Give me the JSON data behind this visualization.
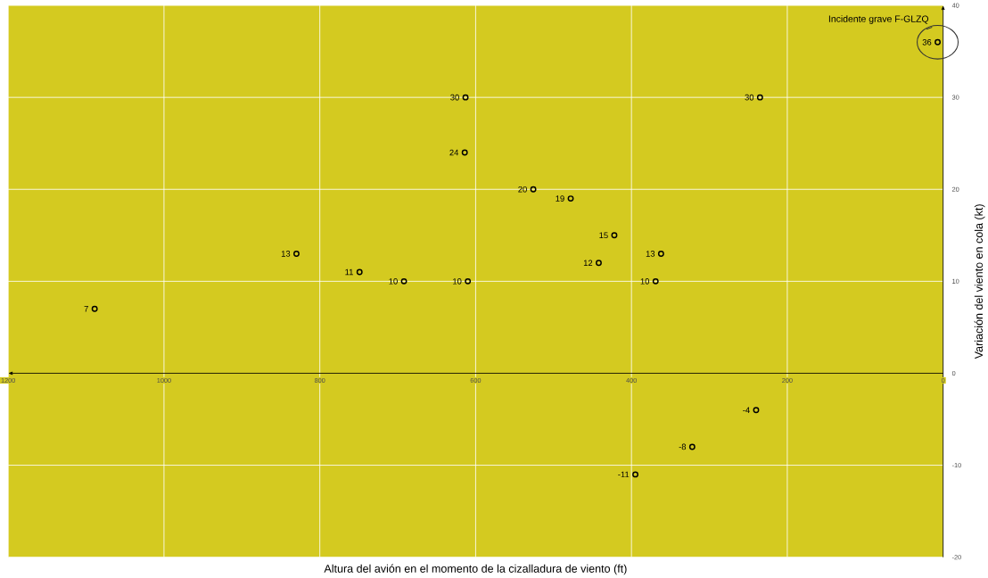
{
  "chart_data": {
    "type": "scatter",
    "xlabel": "Altura del avión en el momento de la cizalladura de viento (ft)",
    "ylabel": "Variación del viento en cola (kt)",
    "x": [
      7,
      613,
      235,
      614,
      526,
      478,
      422,
      830,
      362,
      442,
      749,
      692,
      610,
      369,
      1089,
      240,
      322,
      395
    ],
    "values": [
      36,
      30,
      30,
      24,
      20,
      19,
      15,
      13,
      13,
      12,
      11,
      10,
      10,
      10,
      7,
      -4,
      -8,
      -11
    ],
    "color": "#000000",
    "marker": "circle",
    "data_labels": true,
    "grid": true,
    "xlim": [
      1200,
      0
    ],
    "ylim": [
      -20,
      40
    ],
    "xticks": [
      1200,
      1000,
      800,
      600,
      400,
      200,
      0
    ],
    "yticks": [
      -20,
      -10,
      0,
      10,
      20,
      30,
      40
    ],
    "annotations": [
      {
        "text": "Incidente grave F-GLZQ",
        "x": 7,
        "y": 36
      }
    ]
  }
}
